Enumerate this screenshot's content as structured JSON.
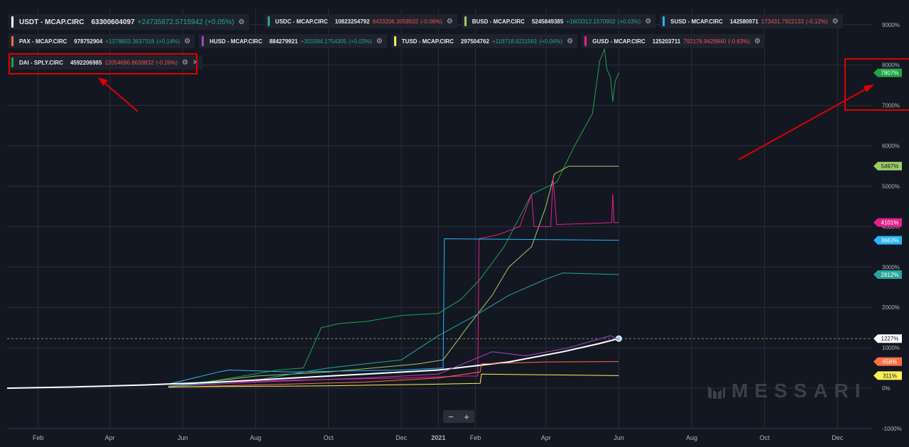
{
  "legend": [
    {
      "symbol": "USDT - MCAP.CIRC",
      "value": "63300604097",
      "change": "+24735872.5715942",
      "pct": "(+0.05%)",
      "color": "#ffffff",
      "dir": "up"
    },
    {
      "symbol": "USDC - MCAP.CIRC",
      "value": "10823254792",
      "change": "6433206.3059502",
      "pct": "(-0.06%)",
      "color": "#26a69a",
      "dir": "down"
    },
    {
      "symbol": "BUSD - MCAP.CIRC",
      "value": "5245849385",
      "change": "+1603312.1570902",
      "pct": "(+0.03%)",
      "color": "#9ccc65",
      "dir": "up"
    },
    {
      "symbol": "SUSD - MCAP.CIRC",
      "value": "142580971",
      "change": "173431.7922133",
      "pct": "(-0.12%)",
      "color": "#29b6f6",
      "dir": "down"
    },
    {
      "symbol": "PAX - MCAP.CIRC",
      "value": "978752904",
      "change": "+1378803.3637316",
      "pct": "(+0.14%)",
      "color": "#ff7043",
      "dir": "up"
    },
    {
      "symbol": "HUSD - MCAP.CIRC",
      "value": "884279921",
      "change": "+301584.1754305",
      "pct": "(+0.03%)",
      "color": "#ab47bc",
      "dir": "up"
    },
    {
      "symbol": "TUSD - MCAP.CIRC",
      "value": "297504762",
      "change": "+118718.8211561",
      "pct": "(+0.04%)",
      "color": "#ffee58",
      "dir": "up"
    },
    {
      "symbol": "GUSD - MCAP.CIRC",
      "value": "125203711",
      "change": "792176.9429940",
      "pct": "(-0.63%)",
      "color": "#e91e8c",
      "dir": "down"
    },
    {
      "symbol": "DAI - SPLY.CIRC",
      "value": "4592206985",
      "change": "12054696.8639832",
      "pct": "(-0.26%)",
      "color": "#22a347",
      "dir": "down"
    }
  ],
  "icons": {
    "settings": "gear-icon",
    "close": "close-icon",
    "zoom_out": "minus-icon",
    "zoom_in": "plus-icon"
  },
  "watermark": "MESSARI",
  "zoom": {
    "minus": "−",
    "plus": "+"
  },
  "chart_data": {
    "type": "line",
    "y_unit": "percent",
    "ylim": [
      -1000,
      9400
    ],
    "y_ticks": [
      -1000,
      0,
      1000,
      2000,
      3000,
      4000,
      5000,
      6000,
      7000,
      8000,
      9000
    ],
    "y_tick_labels": [
      "-1000%",
      "0%",
      "1000%",
      "2000%",
      "3000%",
      "4000%",
      "5000%",
      "6000%",
      "7000%",
      "8000%",
      "9000%"
    ],
    "xlim": [
      "2020-01-06",
      "2021-12-30"
    ],
    "x_ticks": [
      "2020-02-01",
      "2020-04-01",
      "2020-06-01",
      "2020-08-01",
      "2020-10-01",
      "2020-12-01",
      "2021-01-01",
      "2021-02-01",
      "2021-04-01",
      "2021-06-01",
      "2021-08-01",
      "2021-10-01",
      "2021-12-01"
    ],
    "x_tick_labels": [
      "Feb",
      "Apr",
      "Jun",
      "Aug",
      "Oct",
      "Dec",
      "2021",
      "Feb",
      "Apr",
      "Jun",
      "Aug",
      "Oct",
      "Dec"
    ],
    "grid": true,
    "reference_line": 1227,
    "series": [
      {
        "name": "DAI - SPLY.CIRC",
        "color": "#22a347",
        "last_label": "7807%",
        "points": [
          [
            "2020-05-20",
            50
          ],
          [
            "2020-07-01",
            200
          ],
          [
            "2020-08-20",
            450
          ],
          [
            "2020-09-10",
            500
          ],
          [
            "2020-09-25",
            1500
          ],
          [
            "2020-10-10",
            1600
          ],
          [
            "2020-11-01",
            1650
          ],
          [
            "2020-12-01",
            1800
          ],
          [
            "2021-01-01",
            1850
          ],
          [
            "2021-01-20",
            2200
          ],
          [
            "2021-02-05",
            2700
          ],
          [
            "2021-02-25",
            3500
          ],
          [
            "2021-03-20",
            4800
          ],
          [
            "2021-04-10",
            5100
          ],
          [
            "2021-04-25",
            6000
          ],
          [
            "2021-05-10",
            6800
          ],
          [
            "2021-05-16",
            8100
          ],
          [
            "2021-05-20",
            8400
          ],
          [
            "2021-05-22",
            7900
          ],
          [
            "2021-05-25",
            7700
          ],
          [
            "2021-05-27",
            7100
          ],
          [
            "2021-05-29",
            7600
          ],
          [
            "2021-06-01",
            7807
          ]
        ]
      },
      {
        "name": "BUSD - MCAP.CIRC",
        "color": "#9ccc65",
        "last_label": "5497%",
        "points": [
          [
            "2020-05-20",
            30
          ],
          [
            "2020-08-01",
            300
          ],
          [
            "2020-10-01",
            400
          ],
          [
            "2020-12-15",
            600
          ],
          [
            "2021-01-05",
            700
          ],
          [
            "2021-01-25",
            1500
          ],
          [
            "2021-02-15",
            2300
          ],
          [
            "2021-03-01",
            3000
          ],
          [
            "2021-03-20",
            3500
          ],
          [
            "2021-04-01",
            4500
          ],
          [
            "2021-04-08",
            5300
          ],
          [
            "2021-04-20",
            5497
          ],
          [
            "2021-06-01",
            5497
          ]
        ]
      },
      {
        "name": "GUSD - MCAP.CIRC",
        "color": "#e91e8c",
        "last_label": "4101%",
        "points": [
          [
            "2020-05-20",
            100
          ],
          [
            "2020-09-01",
            200
          ],
          [
            "2020-12-01",
            250
          ],
          [
            "2021-01-25",
            300
          ],
          [
            "2021-02-03",
            300
          ],
          [
            "2021-02-04",
            3700
          ],
          [
            "2021-02-20",
            3800
          ],
          [
            "2021-03-10",
            4000
          ],
          [
            "2021-03-20",
            4800
          ],
          [
            "2021-03-22",
            4000
          ],
          [
            "2021-04-05",
            4000
          ],
          [
            "2021-04-07",
            5200
          ],
          [
            "2021-04-10",
            4050
          ],
          [
            "2021-05-26",
            4100
          ],
          [
            "2021-05-27",
            4800
          ],
          [
            "2021-05-28",
            4100
          ],
          [
            "2021-06-01",
            4101
          ]
        ]
      },
      {
        "name": "SUSD - MCAP.CIRC",
        "color": "#29b6f6",
        "last_label": "3663%",
        "points": [
          [
            "2020-05-20",
            100
          ],
          [
            "2020-07-01",
            400
          ],
          [
            "2020-07-10",
            450
          ],
          [
            "2020-09-01",
            400
          ],
          [
            "2020-12-01",
            450
          ],
          [
            "2021-01-05",
            500
          ],
          [
            "2021-01-06",
            3700
          ],
          [
            "2021-06-01",
            3663
          ]
        ]
      },
      {
        "name": "USDC - MCAP.CIRC",
        "color": "#26a69a",
        "last_label": "2812%",
        "points": [
          [
            "2020-05-20",
            50
          ],
          [
            "2020-08-01",
            200
          ],
          [
            "2020-10-01",
            500
          ],
          [
            "2020-12-01",
            700
          ],
          [
            "2021-01-01",
            1300
          ],
          [
            "2021-02-01",
            1800
          ],
          [
            "2021-03-01",
            2300
          ],
          [
            "2021-04-01",
            2700
          ],
          [
            "2021-04-15",
            2850
          ],
          [
            "2021-06-01",
            2812
          ]
        ]
      },
      {
        "name": "USDT - MCAP.CIRC",
        "color": "#ffffff",
        "last_label": "1227%",
        "points": [
          [
            "2020-01-06",
            0
          ],
          [
            "2020-03-01",
            30
          ],
          [
            "2020-05-01",
            80
          ],
          [
            "2020-07-01",
            150
          ],
          [
            "2020-09-01",
            250
          ],
          [
            "2020-11-01",
            350
          ],
          [
            "2021-01-01",
            450
          ],
          [
            "2021-03-01",
            650
          ],
          [
            "2021-04-15",
            900
          ],
          [
            "2021-05-15",
            1100
          ],
          [
            "2021-06-01",
            1227
          ]
        ]
      },
      {
        "name": "HUSD - MCAP.CIRC",
        "color": "#ab47bc",
        "points": [
          [
            "2020-05-20",
            40
          ],
          [
            "2020-08-01",
            150
          ],
          [
            "2020-11-01",
            250
          ],
          [
            "2021-01-01",
            350
          ],
          [
            "2021-02-15",
            900
          ],
          [
            "2021-03-15",
            800
          ],
          [
            "2021-04-20",
            1000
          ],
          [
            "2021-05-25",
            1300
          ],
          [
            "2021-06-01",
            1200
          ]
        ]
      },
      {
        "name": "PAX - MCAP.CIRC",
        "color": "#ff7043",
        "last_label": "658%",
        "points": [
          [
            "2020-05-20",
            20
          ],
          [
            "2020-08-01",
            80
          ],
          [
            "2020-11-01",
            150
          ],
          [
            "2021-01-01",
            250
          ],
          [
            "2021-02-05",
            400
          ],
          [
            "2021-02-06",
            600
          ],
          [
            "2021-04-01",
            650
          ],
          [
            "2021-06-01",
            658
          ]
        ]
      },
      {
        "name": "TUSD - MCAP.CIRC",
        "color": "#ffee58",
        "last_label": "311%",
        "points": [
          [
            "2020-05-20",
            30
          ],
          [
            "2020-10-01",
            60
          ],
          [
            "2021-01-01",
            100
          ],
          [
            "2021-02-05",
            120
          ],
          [
            "2021-02-06",
            350
          ],
          [
            "2021-04-01",
            330
          ],
          [
            "2021-06-01",
            311
          ]
        ]
      }
    ]
  }
}
